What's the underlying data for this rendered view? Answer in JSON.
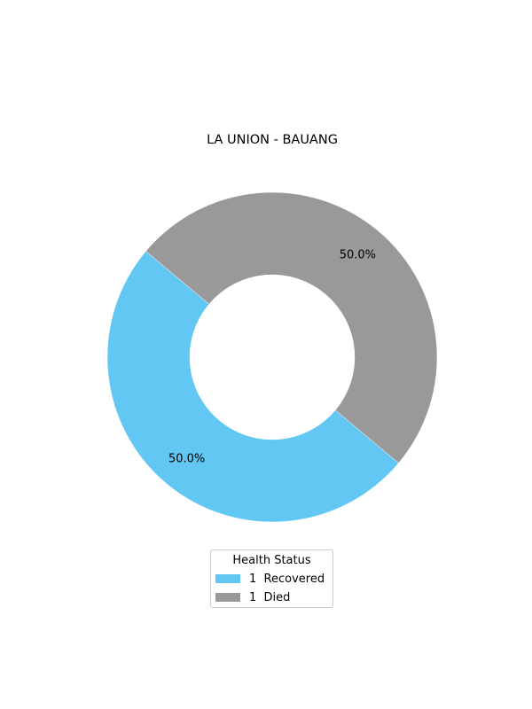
{
  "chart_data": {
    "type": "pie",
    "style": "donut",
    "title": "LA UNION - BAUANG",
    "slices": [
      {
        "label": "1  Recovered",
        "value": 1,
        "percent_label": "50.0%",
        "color": "#62c7f3"
      },
      {
        "label": "1  Died",
        "value": 1,
        "percent_label": "50.0%",
        "color": "#999999"
      }
    ],
    "legend": {
      "title": "Health Status",
      "placement": "bottom-center"
    }
  }
}
